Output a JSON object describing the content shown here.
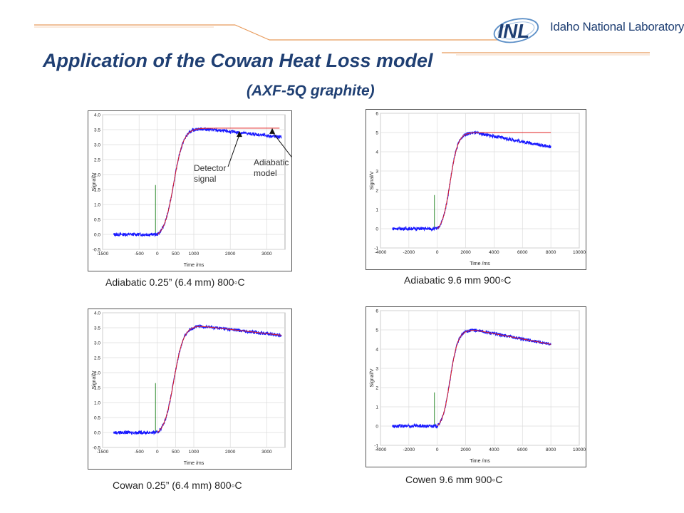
{
  "slide": {
    "title": "Application of the Cowan Heat Loss model",
    "subtitle": "(AXF-5Q graphite)",
    "logo_mark": "INL",
    "logo_text": "Idaho National Laboratory",
    "colors": {
      "title": "#1f3f73",
      "signal": "#1a1aff",
      "model": "#e02020",
      "pulse": "#2e8b2e",
      "accent": "#e8a060"
    }
  },
  "chart_data": [
    {
      "type": "line",
      "caption": "Adiabatic 0.25” (6.4 mm) 800◦C",
      "xlabel": "Time /ms",
      "ylabel": "Signal/V",
      "xlim": [
        -1500,
        3500
      ],
      "ylim": [
        -0.5,
        4.0
      ],
      "xticks": [
        -1500,
        -500,
        0,
        500,
        1000,
        2000,
        3000
      ],
      "xtick_labels": [
        "-1500",
        "-500",
        "0",
        "500",
        "1000",
        "2000",
        "3000"
      ],
      "yticks": [
        -0.5,
        0.0,
        0.5,
        1.0,
        1.5,
        2.0,
        2.5,
        3.0,
        3.5,
        4.0
      ],
      "ytick_labels": [
        "-0.5",
        "0.0",
        "0.5",
        "1.0",
        "1.5",
        "2.0",
        "2.5",
        "3.0",
        "3.5",
        "4.0"
      ],
      "grid": true,
      "baseline": 0.0,
      "onset": 0,
      "rise_mid": 450,
      "rise_width": 135,
      "peak": 3.55,
      "peak_time": 1100,
      "end_x": 3400,
      "end_value": 3.25,
      "pulse": {
        "x": -50,
        "height": 1.65
      },
      "model": "adiabatic",
      "model_end": 3350,
      "annotations": [
        {
          "text": "Detector\nsignal",
          "target_x": 2250,
          "target_y": 3.45
        },
        {
          "text": "Adiabatic\nmodel",
          "target_x": 3150,
          "target_y": 3.55
        }
      ]
    },
    {
      "type": "line",
      "caption": "Adiabatic 9.6 mm 900◦C",
      "xlabel": "Time /ms",
      "ylabel": "Signal/V",
      "xlim": [
        -4000,
        10000
      ],
      "ylim": [
        -1,
        6
      ],
      "xticks": [
        -4000,
        -2000,
        0,
        2000,
        4000,
        6000,
        8000,
        10000
      ],
      "xtick_labels": [
        "-4000",
        "-2000",
        "0",
        "2000",
        "4000",
        "6000",
        "8000",
        "10000"
      ],
      "yticks": [
        -1,
        0,
        1,
        2,
        3,
        4,
        5,
        6
      ],
      "ytick_labels": [
        "-1",
        "0",
        "1",
        "2",
        "3",
        "4",
        "5",
        "6"
      ],
      "grid": true,
      "baseline": 0.0,
      "onset": 0,
      "rise_mid": 900,
      "rise_width": 280,
      "peak": 5.0,
      "peak_time": 2600,
      "end_x": 8000,
      "end_value": 4.25,
      "pulse": {
        "x": -200,
        "height": 1.75
      },
      "model": "adiabatic",
      "model_end": 8000,
      "annotations": []
    },
    {
      "type": "line",
      "caption": "Cowan 0.25” (6.4 mm) 800◦C",
      "xlabel": "Time /ms",
      "ylabel": "Signal/V",
      "xlim": [
        -1500,
        3500
      ],
      "ylim": [
        -0.5,
        4.0
      ],
      "xticks": [
        -1500,
        -500,
        0,
        500,
        1000,
        2000,
        3000
      ],
      "xtick_labels": [
        "-1500",
        "-500",
        "0",
        "500",
        "1000",
        "2000",
        "3000"
      ],
      "yticks": [
        -0.5,
        0.0,
        0.5,
        1.0,
        1.5,
        2.0,
        2.5,
        3.0,
        3.5,
        4.0
      ],
      "ytick_labels": [
        "-0.5",
        "0.0",
        "0.5",
        "1.0",
        "1.5",
        "2.0",
        "2.5",
        "3.0",
        "3.5",
        "4.0"
      ],
      "grid": true,
      "baseline": 0.0,
      "onset": 0,
      "rise_mid": 450,
      "rise_width": 135,
      "peak": 3.57,
      "peak_time": 1100,
      "end_x": 3400,
      "end_value": 3.25,
      "pulse": {
        "x": -50,
        "height": 1.65
      },
      "model": "cowan",
      "model_end": 3400,
      "annotations": []
    },
    {
      "type": "line",
      "caption": "Cowen 9.6 mm 900◦C",
      "xlabel": "Time /ms",
      "ylabel": "Signal/V",
      "xlim": [
        -4000,
        10000
      ],
      "ylim": [
        -1,
        6
      ],
      "xticks": [
        -4000,
        -2000,
        0,
        2000,
        4000,
        6000,
        8000,
        10000
      ],
      "xtick_labels": [
        "-4000",
        "-2000",
        "0",
        "2000",
        "4000",
        "6000",
        "8000",
        "10000"
      ],
      "yticks": [
        -1,
        0,
        1,
        2,
        3,
        4,
        5,
        6
      ],
      "ytick_labels": [
        "-1",
        "0",
        "1",
        "2",
        "3",
        "4",
        "5",
        "6"
      ],
      "grid": true,
      "baseline": 0.0,
      "onset": 0,
      "rise_mid": 900,
      "rise_width": 280,
      "peak": 5.0,
      "peak_time": 2600,
      "end_x": 8000,
      "end_value": 4.25,
      "pulse": {
        "x": -200,
        "height": 1.75
      },
      "model": "cowan",
      "model_end": 8000,
      "annotations": []
    }
  ]
}
